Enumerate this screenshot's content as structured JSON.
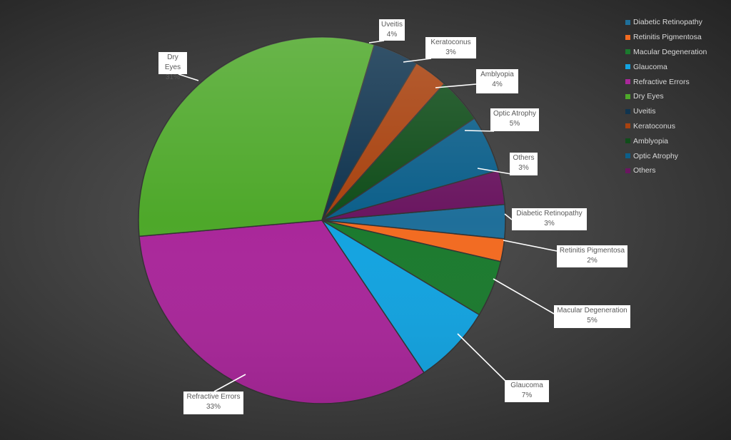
{
  "chart_data": {
    "type": "pie",
    "categories": [
      "Diabetic Retinopathy",
      "Retinitis Pigmentosa",
      "Macular Degeneration",
      "Glaucoma",
      "Refractive Errors",
      "Dry Eyes",
      "Uveitis",
      "Keratoconus",
      "Amblyopia",
      "Optic Atrophy",
      "Others"
    ],
    "values": [
      3,
      2,
      5,
      7,
      33,
      31,
      4,
      3,
      4,
      5,
      3
    ],
    "value_labels": [
      "3%",
      "2%",
      "5%",
      "7%",
      "33%",
      "31%",
      "4%",
      "3%",
      "4%",
      "5%",
      "3%"
    ],
    "colors": [
      "#1f6f9a",
      "#f26b21",
      "#1b7a2e",
      "#13a3e0",
      "#a9279a",
      "#4ea82a",
      "#10344f",
      "#a8420f",
      "#104d1a",
      "#0c5f8a",
      "#6a1660"
    ],
    "legend_position": "top-right",
    "data_labels": "callouts with category and percent"
  }
}
